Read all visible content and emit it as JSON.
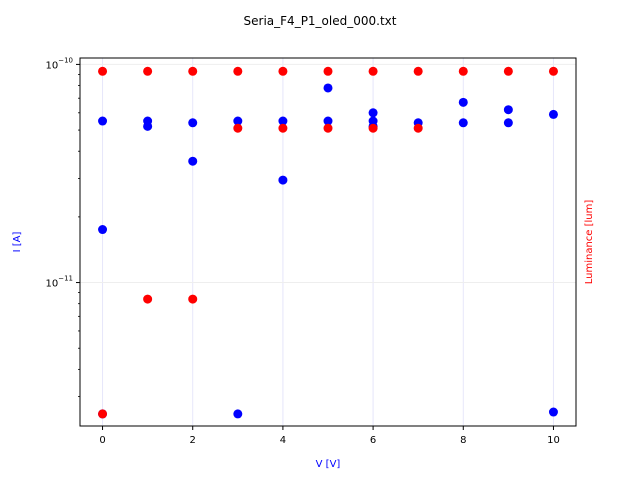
{
  "chart_data": {
    "type": "scatter",
    "title": "Seria_F4_P1_oled_000.txt",
    "xlabel": "V [V]",
    "ylabel": "I [A]",
    "y2label": "Luminance [lum]",
    "xlim": [
      -0.5,
      10.5
    ],
    "ylim": [
      2.2e-12,
      1.07e-10
    ],
    "yscale": "log",
    "x_ticks": [
      0,
      2,
      4,
      6,
      8,
      10
    ],
    "x_tick_labels": [
      "0",
      "2",
      "4",
      "6",
      "8",
      "10"
    ],
    "y_ticks": [
      {
        "value": 1e-10,
        "base": "10",
        "exp": "−10"
      },
      {
        "value": 1e-11,
        "base": "10",
        "exp": "−11"
      }
    ],
    "grid": true,
    "legend": "none",
    "colors": {
      "current": "#0000ff",
      "luminance": "#ff0000",
      "grid_vertical": "#e6e6fa",
      "grid_horizontal": "#eeeeee",
      "axis_label_blue": "#0000ff",
      "axis_label_red": "#ff0000"
    },
    "series": [
      {
        "color_key": "current",
        "x": [
          0,
          0,
          0,
          1,
          1,
          2,
          2,
          3,
          3,
          4,
          4,
          5,
          5,
          6,
          6,
          6,
          7,
          8,
          8,
          9,
          9,
          10,
          10
        ],
        "y": [
          5.5e-11,
          1.75e-11,
          2.5e-12,
          5.5e-11,
          5.2e-11,
          5.4e-11,
          3.6e-11,
          5.5e-11,
          2.5e-12,
          5.5e-11,
          2.95e-11,
          7.8e-11,
          5.5e-11,
          6e-11,
          5.5e-11,
          5.2e-11,
          5.4e-11,
          6.7e-11,
          5.4e-11,
          6.2e-11,
          5.4e-11,
          5.9e-11,
          2.55e-12
        ]
      },
      {
        "color_key": "luminance",
        "x": [
          0,
          0,
          1,
          1,
          2,
          2,
          3,
          3,
          4,
          4,
          5,
          5,
          6,
          6,
          7,
          7,
          8,
          9,
          10
        ],
        "y": [
          9.3e-11,
          2.5e-12,
          9.3e-11,
          8.4e-12,
          9.3e-11,
          8.4e-12,
          9.3e-11,
          5.1e-11,
          9.3e-11,
          5.1e-11,
          9.3e-11,
          5.1e-11,
          9.3e-11,
          5.1e-11,
          9.3e-11,
          5.1e-11,
          9.3e-11,
          9.3e-11,
          9.3e-11
        ]
      }
    ]
  }
}
